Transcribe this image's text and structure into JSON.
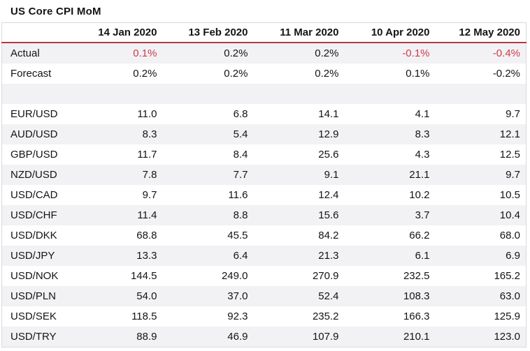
{
  "title": "US Core CPI MoM",
  "colors": {
    "accent_rule": "#b43848",
    "negative_text": "#d2384a",
    "stripe_row": "#f2f2f5",
    "table_border": "#d9d9d9",
    "text": "#141414"
  },
  "chart_data": {
    "type": "table",
    "title": "US Core CPI MoM",
    "columns": [
      "",
      "14 Jan 2020",
      "13 Feb 2020",
      "11 Mar 2020",
      "10 Apr 2020",
      "12 May 2020"
    ],
    "red_value_cells": [
      [
        0,
        0
      ],
      [
        0,
        3
      ],
      [
        0,
        4
      ]
    ],
    "rows": [
      {
        "label": "Actual",
        "values": [
          "0.1%",
          "0.2%",
          "0.2%",
          "-0.1%",
          "-0.4%"
        ]
      },
      {
        "label": "Forecast",
        "values": [
          "0.2%",
          "0.2%",
          "0.2%",
          "0.1%",
          "-0.2%"
        ]
      },
      {
        "label": "",
        "values": [
          "",
          "",
          "",
          "",
          ""
        ]
      },
      {
        "label": "EUR/USD",
        "values": [
          "11.0",
          "6.8",
          "14.1",
          "4.1",
          "9.7"
        ]
      },
      {
        "label": "AUD/USD",
        "values": [
          "8.3",
          "5.4",
          "12.9",
          "8.3",
          "12.1"
        ]
      },
      {
        "label": "GBP/USD",
        "values": [
          "11.7",
          "8.4",
          "25.6",
          "4.3",
          "12.5"
        ]
      },
      {
        "label": "NZD/USD",
        "values": [
          "7.8",
          "7.7",
          "9.1",
          "21.1",
          "9.7"
        ]
      },
      {
        "label": "USD/CAD",
        "values": [
          "9.7",
          "11.6",
          "12.4",
          "10.2",
          "10.5"
        ]
      },
      {
        "label": "USD/CHF",
        "values": [
          "11.4",
          "8.8",
          "15.6",
          "3.7",
          "10.4"
        ]
      },
      {
        "label": "USD/DKK",
        "values": [
          "68.8",
          "45.5",
          "84.2",
          "66.2",
          "68.0"
        ]
      },
      {
        "label": "USD/JPY",
        "values": [
          "13.3",
          "6.4",
          "21.3",
          "6.1",
          "6.9"
        ]
      },
      {
        "label": "USD/NOK",
        "values": [
          "144.5",
          "249.0",
          "270.9",
          "232.5",
          "165.2"
        ]
      },
      {
        "label": "USD/PLN",
        "values": [
          "54.0",
          "37.0",
          "52.4",
          "108.3",
          "63.0"
        ]
      },
      {
        "label": "USD/SEK",
        "values": [
          "118.5",
          "92.3",
          "235.2",
          "166.3",
          "125.9"
        ]
      },
      {
        "label": "USD/TRY",
        "values": [
          "88.9",
          "46.9",
          "107.9",
          "210.1",
          "123.0"
        ]
      }
    ]
  }
}
